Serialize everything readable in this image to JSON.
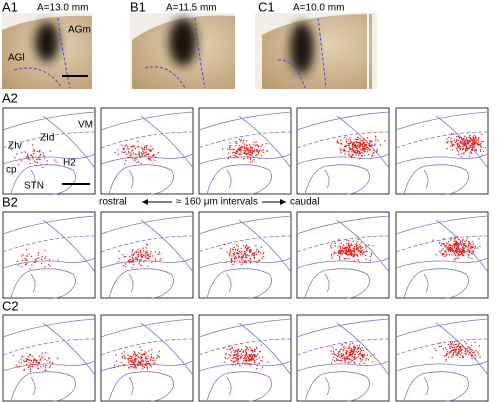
{
  "top_panels": [
    {
      "label": "A1",
      "level": "A=13.0 mm"
    },
    {
      "label": "B1",
      "level": "A=11.5 mm"
    },
    {
      "label": "C1",
      "level": "A=10.0 mm"
    }
  ],
  "cortex_labels": {
    "medial": "AGm",
    "lateral": "AGl"
  },
  "rows": [
    {
      "label": "A2"
    },
    {
      "label": "B2"
    },
    {
      "label": "C2"
    }
  ],
  "atlas_labels": {
    "zi_ventral": "ZIv",
    "zi_dorsal": "ZId",
    "vm": "VM",
    "h2": "H2",
    "cp": "cp",
    "stn": "STN"
  },
  "direction": {
    "rostral": "rostral",
    "interval": "≈ 160 μm intervals",
    "caudal": "caudal"
  }
}
